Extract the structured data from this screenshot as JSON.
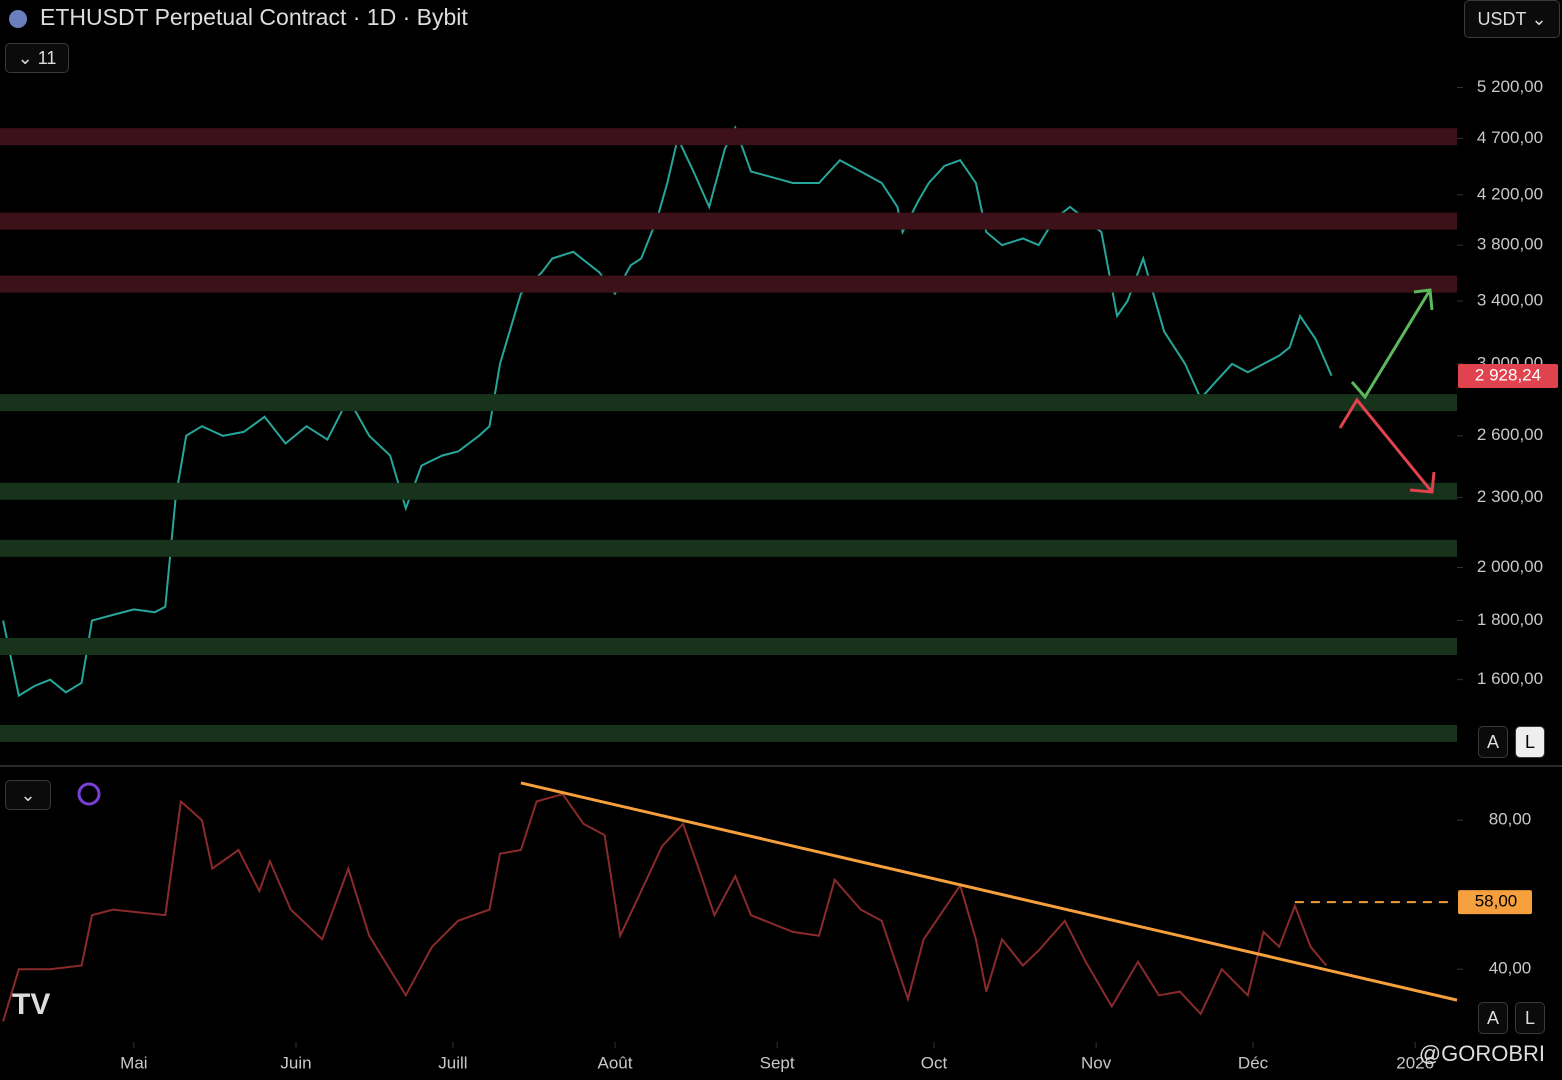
{
  "ui": {
    "title": "ETHUSDT Perpetual Contract · 1D · Bybit",
    "indicator_count": 11,
    "currency": "USDT",
    "price_scale_buttons": [
      "A",
      "L"
    ],
    "indicator_scale_buttons": [
      "A",
      "L"
    ],
    "watermark": "@GOROBRI"
  },
  "chart_data": [
    {
      "type": "line",
      "color": "#26a69a",
      "log": true,
      "grid": false,
      "x": [
        -25,
        -22,
        -19,
        -16,
        -13,
        -10,
        -8,
        -4,
        0,
        4,
        6,
        8,
        10,
        13,
        17,
        21,
        25,
        29,
        33,
        37,
        41,
        45,
        49,
        52,
        55,
        59,
        62,
        66,
        68,
        70,
        74,
        78,
        80,
        84,
        89,
        92,
        95,
        97,
        100,
        102,
        104,
        107,
        110,
        113,
        115,
        118,
        122,
        126,
        131,
        135,
        139,
        143,
        146,
        147,
        150,
        152,
        155,
        158,
        161,
        163,
        166,
        170,
        173,
        176,
        179,
        182,
        185,
        188,
        190,
        193,
        197,
        201,
        204,
        207,
        210,
        213,
        216,
        219,
        221,
        223,
        226,
        229
      ],
      "values": [
        1800,
        1550,
        1580,
        1600,
        1560,
        1590,
        1800,
        1820,
        1840,
        1830,
        1850,
        2300,
        2600,
        2650,
        2600,
        2620,
        2700,
        2560,
        2650,
        2580,
        2800,
        2600,
        2500,
        2250,
        2450,
        2500,
        2520,
        2600,
        2650,
        3000,
        3450,
        3600,
        3700,
        3750,
        3600,
        3450,
        3650,
        3700,
        4000,
        4300,
        4700,
        4400,
        4100,
        4600,
        4800,
        4400,
        4350,
        4300,
        4300,
        4500,
        4400,
        4300,
        4100,
        3900,
        4150,
        4300,
        4450,
        4500,
        4300,
        3900,
        3800,
        3850,
        3800,
        4000,
        4100,
        4000,
        3900,
        3300,
        3400,
        3700,
        3200,
        3000,
        2800,
        2900,
        3000,
        2950,
        3000,
        3050,
        3100,
        3300,
        3150,
        2930
      ],
      "xlim": [
        -25.6,
        253
      ],
      "ylim": [
        1350,
        6190
      ],
      "yticks": [
        {
          "value": 5200,
          "label": "5 200,00"
        },
        {
          "value": 4700,
          "label": "4 700,00"
        },
        {
          "value": 4200,
          "label": "4 200,00"
        },
        {
          "value": 3800,
          "label": "3 800,00"
        },
        {
          "value": 3400,
          "label": "3 400,00"
        },
        {
          "value": 3000,
          "label": "3 000,00"
        },
        {
          "value": 2600,
          "label": "2 600,00"
        },
        {
          "value": 2300,
          "label": "2 300,00"
        },
        {
          "value": 2000,
          "label": "2 000,00"
        },
        {
          "value": 1800,
          "label": "1 800,00"
        },
        {
          "value": 1600,
          "label": "1 600,00"
        }
      ],
      "zones": [
        {
          "value": 4720,
          "color": "#3d1118"
        },
        {
          "value": 3990,
          "color": "#3d1118"
        },
        {
          "value": 3520,
          "color": "#3d1118"
        },
        {
          "value": 2780,
          "color": "#17331b"
        },
        {
          "value": 2330,
          "color": "#17331b"
        },
        {
          "value": 2080,
          "color": "#17331b"
        },
        {
          "value": 1711,
          "color": "#17331b"
        },
        {
          "value": 1439,
          "color": "#17331b"
        }
      ],
      "last_price": {
        "value": 2928.24,
        "label": "2 928,24",
        "color": "#e0424e"
      }
    },
    {
      "type": "line",
      "color": "#8b2a2a",
      "grid": false,
      "x": [
        -25,
        -22,
        -16,
        -10,
        -8,
        -4,
        6,
        9,
        13,
        15,
        20,
        24,
        26,
        30,
        36,
        41,
        45,
        52,
        57,
        62,
        68,
        70,
        74,
        77,
        82,
        86,
        90,
        93,
        97,
        101,
        105,
        108,
        111,
        115,
        118,
        126,
        131,
        134,
        139,
        143,
        148,
        151,
        158,
        161,
        163,
        166,
        170,
        173,
        178,
        182,
        187,
        192,
        196,
        200,
        204,
        208,
        213,
        216,
        219,
        222,
        225,
        228
      ],
      "values": [
        26,
        40,
        40,
        41,
        54.5,
        56,
        54.5,
        85,
        80,
        67,
        72,
        61,
        69,
        56,
        48,
        67,
        49,
        33,
        46,
        53,
        56,
        71,
        72,
        85,
        87,
        79,
        76,
        49,
        61,
        73,
        79,
        67,
        54.5,
        65,
        54.5,
        50,
        49,
        64,
        56,
        53,
        32,
        48,
        62.5,
        48,
        34,
        48,
        41,
        45,
        53,
        42,
        30,
        42,
        33,
        34,
        28,
        40,
        33,
        50,
        46,
        57,
        46,
        41
      ],
      "xlim": [
        -25.6,
        253
      ],
      "ylim": [
        21,
        94
      ],
      "yticks": [
        {
          "value": 80,
          "label": "80,00"
        },
        {
          "value": 40,
          "label": "40,00"
        }
      ],
      "xticks": [
        {
          "value": 0,
          "label": "Mai"
        },
        {
          "value": 31,
          "label": "Juin"
        },
        {
          "value": 61,
          "label": "Juill"
        },
        {
          "value": 92,
          "label": "Août"
        },
        {
          "value": 123,
          "label": "Sept"
        },
        {
          "value": 153,
          "label": "Oct"
        },
        {
          "value": 184,
          "label": "Nov"
        },
        {
          "value": 214,
          "label": "Déc"
        },
        {
          "value": 245,
          "label": "2026"
        }
      ],
      "trendline": {
        "x": [
          74,
          253
        ],
        "values": [
          90,
          31.7
        ],
        "color": "#f5a03c"
      },
      "level": {
        "x": 222,
        "value": 58,
        "label": "58,00",
        "color": "#f5a03c"
      }
    }
  ]
}
